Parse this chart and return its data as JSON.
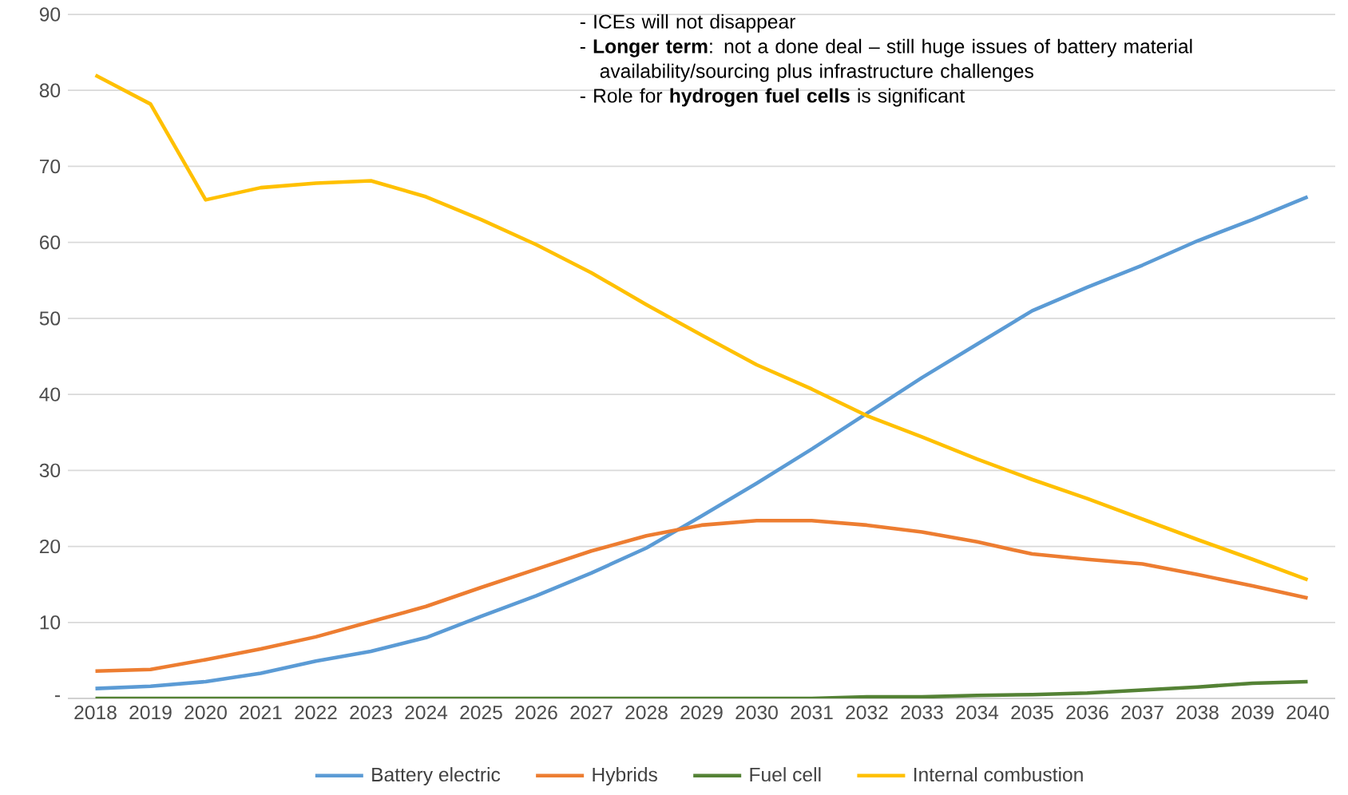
{
  "chart_data": {
    "type": "line",
    "categories": [
      "2018",
      "2019",
      "2020",
      "2021",
      "2022",
      "2023",
      "2024",
      "2025",
      "2026",
      "2027",
      "2028",
      "2029",
      "2030",
      "2031",
      "2032",
      "2033",
      "2034",
      "2035",
      "2036",
      "2037",
      "2038",
      "2039",
      "2040"
    ],
    "series": [
      {
        "name": "Battery electric",
        "color": "#5b9bd5",
        "values": [
          1.3,
          1.6,
          2.2,
          3.3,
          4.9,
          6.2,
          8.0,
          10.8,
          13.5,
          16.5,
          19.8,
          24.0,
          28.3,
          32.8,
          37.5,
          42.2,
          46.6,
          51.0,
          54.1,
          57.0,
          60.2,
          63.0,
          66.0
        ]
      },
      {
        "name": "Hybrids",
        "color": "#ed7d31",
        "values": [
          3.6,
          3.8,
          5.1,
          6.5,
          8.1,
          10.1,
          12.1,
          14.6,
          17.0,
          19.4,
          21.4,
          22.8,
          23.4,
          23.4,
          22.8,
          21.9,
          20.6,
          19.0,
          18.3,
          17.7,
          16.3,
          14.8,
          13.2
        ]
      },
      {
        "name": "Fuel cell",
        "color": "#548235",
        "values": [
          0,
          0,
          0,
          0,
          0,
          0,
          0,
          0,
          0,
          0,
          0,
          0,
          0,
          0,
          0.2,
          0.2,
          0.4,
          0.5,
          0.7,
          1.1,
          1.5,
          2.0,
          2.2
        ]
      },
      {
        "name": "Internal combustion",
        "color": "#ffc000",
        "values": [
          82.0,
          78.2,
          65.6,
          67.2,
          67.8,
          68.1,
          66.0,
          63.0,
          59.7,
          56.0,
          51.8,
          47.8,
          43.9,
          40.7,
          37.2,
          34.4,
          31.5,
          28.8,
          26.3,
          23.6,
          20.9,
          18.3,
          15.6
        ]
      }
    ],
    "ylim": [
      0,
      90
    ],
    "yticks": [
      {
        "value": 0,
        "label": "-"
      },
      10,
      20,
      30,
      40,
      50,
      60,
      70,
      80,
      90
    ],
    "grid": "y",
    "legend": "bottom",
    "marker": "none",
    "line_style": "solid",
    "annotations": [
      "- ICEs will not disappear",
      "- **Longer term**: not a done deal – still huge issues of battery material availability/sourcing plus infrastructure challenges",
      "- Role for **hydrogen fuel cells** is significant"
    ]
  }
}
